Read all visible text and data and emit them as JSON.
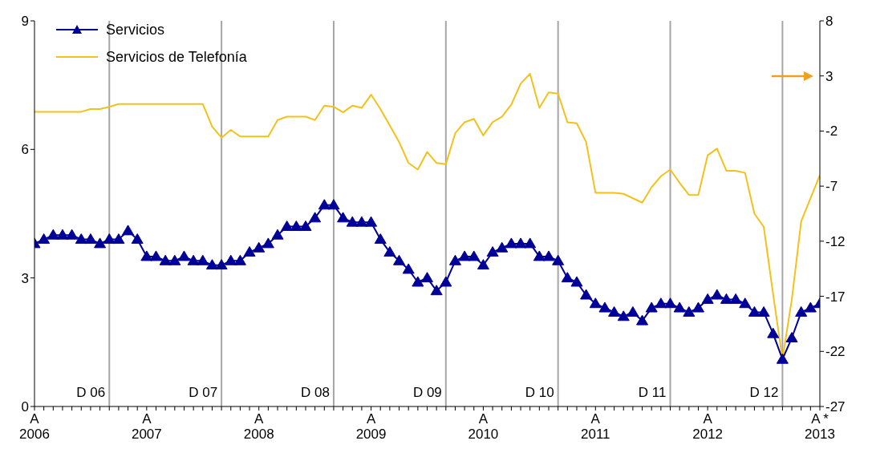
{
  "chart_data": {
    "type": "line",
    "x": [
      "2006-04",
      "2006-05",
      "2006-06",
      "2006-07",
      "2006-08",
      "2006-09",
      "2006-10",
      "2006-11",
      "2006-12",
      "2007-01",
      "2007-02",
      "2007-03",
      "2007-04",
      "2007-05",
      "2007-06",
      "2007-07",
      "2007-08",
      "2007-09",
      "2007-10",
      "2007-11",
      "2007-12",
      "2008-01",
      "2008-02",
      "2008-03",
      "2008-04",
      "2008-05",
      "2008-06",
      "2008-07",
      "2008-08",
      "2008-09",
      "2008-10",
      "2008-11",
      "2008-12",
      "2009-01",
      "2009-02",
      "2009-03",
      "2009-04",
      "2009-05",
      "2009-06",
      "2009-07",
      "2009-08",
      "2009-09",
      "2009-10",
      "2009-11",
      "2009-12",
      "2010-01",
      "2010-02",
      "2010-03",
      "2010-04",
      "2010-05",
      "2010-06",
      "2010-07",
      "2010-08",
      "2010-09",
      "2010-10",
      "2010-11",
      "2010-12",
      "2011-01",
      "2011-02",
      "2011-03",
      "2011-04",
      "2011-05",
      "2011-06",
      "2011-07",
      "2011-08",
      "2011-09",
      "2011-10",
      "2011-11",
      "2011-12",
      "2012-01",
      "2012-02",
      "2012-03",
      "2012-04",
      "2012-05",
      "2012-06",
      "2012-07",
      "2012-08",
      "2012-09",
      "2012-10",
      "2012-11",
      "2012-12",
      "2013-01",
      "2013-02",
      "2013-03",
      "2013-04"
    ],
    "series": [
      {
        "name": "Servicios",
        "color": "#000099",
        "marker": "triangle",
        "values": [
          3.8,
          3.9,
          4.0,
          4.0,
          4.0,
          3.9,
          3.9,
          3.8,
          3.9,
          3.9,
          4.1,
          3.9,
          3.5,
          3.5,
          3.4,
          3.4,
          3.5,
          3.4,
          3.4,
          3.3,
          3.3,
          3.4,
          3.4,
          3.6,
          3.7,
          3.8,
          4.0,
          4.2,
          4.2,
          4.2,
          4.4,
          4.7,
          4.7,
          4.4,
          4.3,
          4.3,
          4.3,
          3.9,
          3.6,
          3.4,
          3.2,
          2.9,
          3.0,
          2.7,
          2.9,
          3.4,
          3.5,
          3.5,
          3.3,
          3.6,
          3.7,
          3.8,
          3.8,
          3.8,
          3.5,
          3.5,
          3.4,
          3.0,
          2.9,
          2.6,
          2.4,
          2.3,
          2.2,
          2.1,
          2.2,
          2.0,
          2.3,
          2.4,
          2.4,
          2.3,
          2.2,
          2.3,
          2.5,
          2.6,
          2.5,
          2.5,
          2.4,
          2.2,
          2.2,
          1.7,
          1.1,
          1.6,
          2.2,
          2.3,
          2.4
        ]
      },
      {
        "name": "Servicios de Telefonía",
        "color": "#f2c21b",
        "axis": "y2",
        "marker": "none",
        "values": [
          -0.25,
          -0.25,
          -0.25,
          -0.25,
          -0.25,
          -0.25,
          0.0,
          0.0,
          0.2,
          0.45,
          0.45,
          0.45,
          0.45,
          0.45,
          0.45,
          0.45,
          0.45,
          0.45,
          0.45,
          -1.6,
          -2.6,
          -1.9,
          -2.5,
          -2.5,
          -2.5,
          -2.5,
          -1.0,
          -0.7,
          -0.7,
          -0.7,
          -1.0,
          0.3,
          0.2,
          -0.3,
          0.3,
          0.1,
          1.3,
          0.0,
          -1.5,
          -3.0,
          -4.9,
          -5.5,
          -3.9,
          -4.9,
          -5.0,
          -2.2,
          -1.2,
          -0.9,
          -2.4,
          -1.2,
          -0.7,
          0.4,
          2.3,
          3.2,
          0.1,
          1.5,
          1.4,
          -1.2,
          -1.3,
          -3.0,
          -7.6,
          -7.6,
          -7.6,
          -7.7,
          -8.1,
          -8.5,
          -7.1,
          -6.1,
          -5.5,
          -6.7,
          -7.8,
          -7.8,
          -4.2,
          -3.6,
          -5.6,
          -5.6,
          -5.8,
          -9.5,
          -10.7,
          -16.8,
          -22.7,
          -17.3,
          -10.2,
          -8.1,
          -6.0
        ]
      }
    ],
    "xlim": [
      "2006-04",
      "2013-04"
    ],
    "xticks": [
      {
        "value": "2006-04",
        "label": "A\n2006"
      },
      {
        "value": "2006-05",
        "label": null
      },
      {
        "value": "2006-06",
        "label": null
      },
      {
        "value": "2006-07",
        "label": null
      },
      {
        "value": "2006-08",
        "label": null
      },
      {
        "value": "2006-09",
        "label": null
      },
      {
        "value": "2006-10",
        "label": null
      },
      {
        "value": "2006-11",
        "label": null
      },
      {
        "value": "2006-12",
        "label": null
      },
      {
        "value": "2007-01",
        "label": null
      },
      {
        "value": "2007-02",
        "label": null
      },
      {
        "value": "2007-03",
        "label": null
      },
      {
        "value": "2007-04",
        "label": "A\n2007"
      },
      {
        "value": "2007-05",
        "label": null
      },
      {
        "value": "2007-06",
        "label": null
      },
      {
        "value": "2007-07",
        "label": null
      },
      {
        "value": "2007-08",
        "label": null
      },
      {
        "value": "2007-09",
        "label": null
      },
      {
        "value": "2007-10",
        "label": null
      },
      {
        "value": "2007-11",
        "label": null
      },
      {
        "value": "2007-12",
        "label": null
      },
      {
        "value": "2008-01",
        "label": null
      },
      {
        "value": "2008-02",
        "label": null
      },
      {
        "value": "2008-03",
        "label": null
      },
      {
        "value": "2008-04",
        "label": "A\n2008"
      },
      {
        "value": "2008-05",
        "label": null
      },
      {
        "value": "2008-06",
        "label": null
      },
      {
        "value": "2008-07",
        "label": null
      },
      {
        "value": "2008-08",
        "label": null
      },
      {
        "value": "2008-09",
        "label": null
      },
      {
        "value": "2008-10",
        "label": null
      },
      {
        "value": "2008-11",
        "label": null
      },
      {
        "value": "2008-12",
        "label": null
      },
      {
        "value": "2009-01",
        "label": null
      },
      {
        "value": "2009-02",
        "label": null
      },
      {
        "value": "2009-03",
        "label": null
      },
      {
        "value": "2009-04",
        "label": "A\n2009"
      },
      {
        "value": "2009-05",
        "label": null
      },
      {
        "value": "2009-06",
        "label": null
      },
      {
        "value": "2009-07",
        "label": null
      },
      {
        "value": "2009-08",
        "label": null
      },
      {
        "value": "2009-09",
        "label": null
      },
      {
        "value": "2009-10",
        "label": null
      },
      {
        "value": "2009-11",
        "label": null
      },
      {
        "value": "2009-12",
        "label": null
      },
      {
        "value": "2010-01",
        "label": null
      },
      {
        "value": "2010-02",
        "label": null
      },
      {
        "value": "2010-03",
        "label": null
      },
      {
        "value": "2010-04",
        "label": "A\n2010"
      },
      {
        "value": "2010-05",
        "label": null
      },
      {
        "value": "2010-06",
        "label": null
      },
      {
        "value": "2010-07",
        "label": null
      },
      {
        "value": "2010-08",
        "label": null
      },
      {
        "value": "2010-09",
        "label": null
      },
      {
        "value": "2010-10",
        "label": null
      },
      {
        "value": "2010-11",
        "label": null
      },
      {
        "value": "2010-12",
        "label": null
      },
      {
        "value": "2011-01",
        "label": null
      },
      {
        "value": "2011-02",
        "label": null
      },
      {
        "value": "2011-03",
        "label": null
      },
      {
        "value": "2011-04",
        "label": "A\n2011"
      },
      {
        "value": "2011-05",
        "label": null
      },
      {
        "value": "2011-06",
        "label": null
      },
      {
        "value": "2011-07",
        "label": null
      },
      {
        "value": "2011-08",
        "label": null
      },
      {
        "value": "2011-09",
        "label": null
      },
      {
        "value": "2011-10",
        "label": null
      },
      {
        "value": "2011-11",
        "label": null
      },
      {
        "value": "2011-12",
        "label": null
      },
      {
        "value": "2012-01",
        "label": null
      },
      {
        "value": "2012-02",
        "label": null
      },
      {
        "value": "2012-03",
        "label": null
      },
      {
        "value": "2012-04",
        "label": "A\n2012"
      },
      {
        "value": "2012-05",
        "label": null
      },
      {
        "value": "2012-06",
        "label": null
      },
      {
        "value": "2012-07",
        "label": null
      },
      {
        "value": "2012-08",
        "label": null
      },
      {
        "value": "2012-09",
        "label": null
      },
      {
        "value": "2012-10",
        "label": null
      },
      {
        "value": "2012-11",
        "label": null
      },
      {
        "value": "2012-12",
        "label": null
      },
      {
        "value": "2013-01",
        "label": null
      },
      {
        "value": "2013-02",
        "label": null
      },
      {
        "value": "2013-03",
        "label": null
      },
      {
        "value": "2013-04",
        "label": "A *\n2013"
      }
    ],
    "ylim": [
      0,
      9
    ],
    "yticks": [
      0,
      3,
      6,
      9
    ],
    "y2lim": [
      -27,
      8
    ],
    "y2ticks": [
      -27,
      -22,
      -17,
      -12,
      -7,
      -2,
      3,
      8
    ],
    "ref_lines": [
      {
        "axis": "x",
        "value": "2006-12",
        "label": "D 06",
        "color": "#a6a6a6"
      },
      {
        "axis": "x",
        "value": "2007-12",
        "label": "D 07",
        "color": "#a6a6a6"
      },
      {
        "axis": "x",
        "value": "2008-12",
        "label": "D 08",
        "color": "#a6a6a6"
      },
      {
        "axis": "x",
        "value": "2009-12",
        "label": "D 09",
        "color": "#a6a6a6"
      },
      {
        "axis": "x",
        "value": "2010-12",
        "label": "D 10",
        "color": "#a6a6a6"
      },
      {
        "axis": "x",
        "value": "2011-12",
        "label": "D 11",
        "color": "#a6a6a6"
      },
      {
        "axis": "x",
        "value": "2012-12",
        "label": "D 12",
        "color": "#a6a6a6"
      }
    ],
    "legend": "top left"
  }
}
